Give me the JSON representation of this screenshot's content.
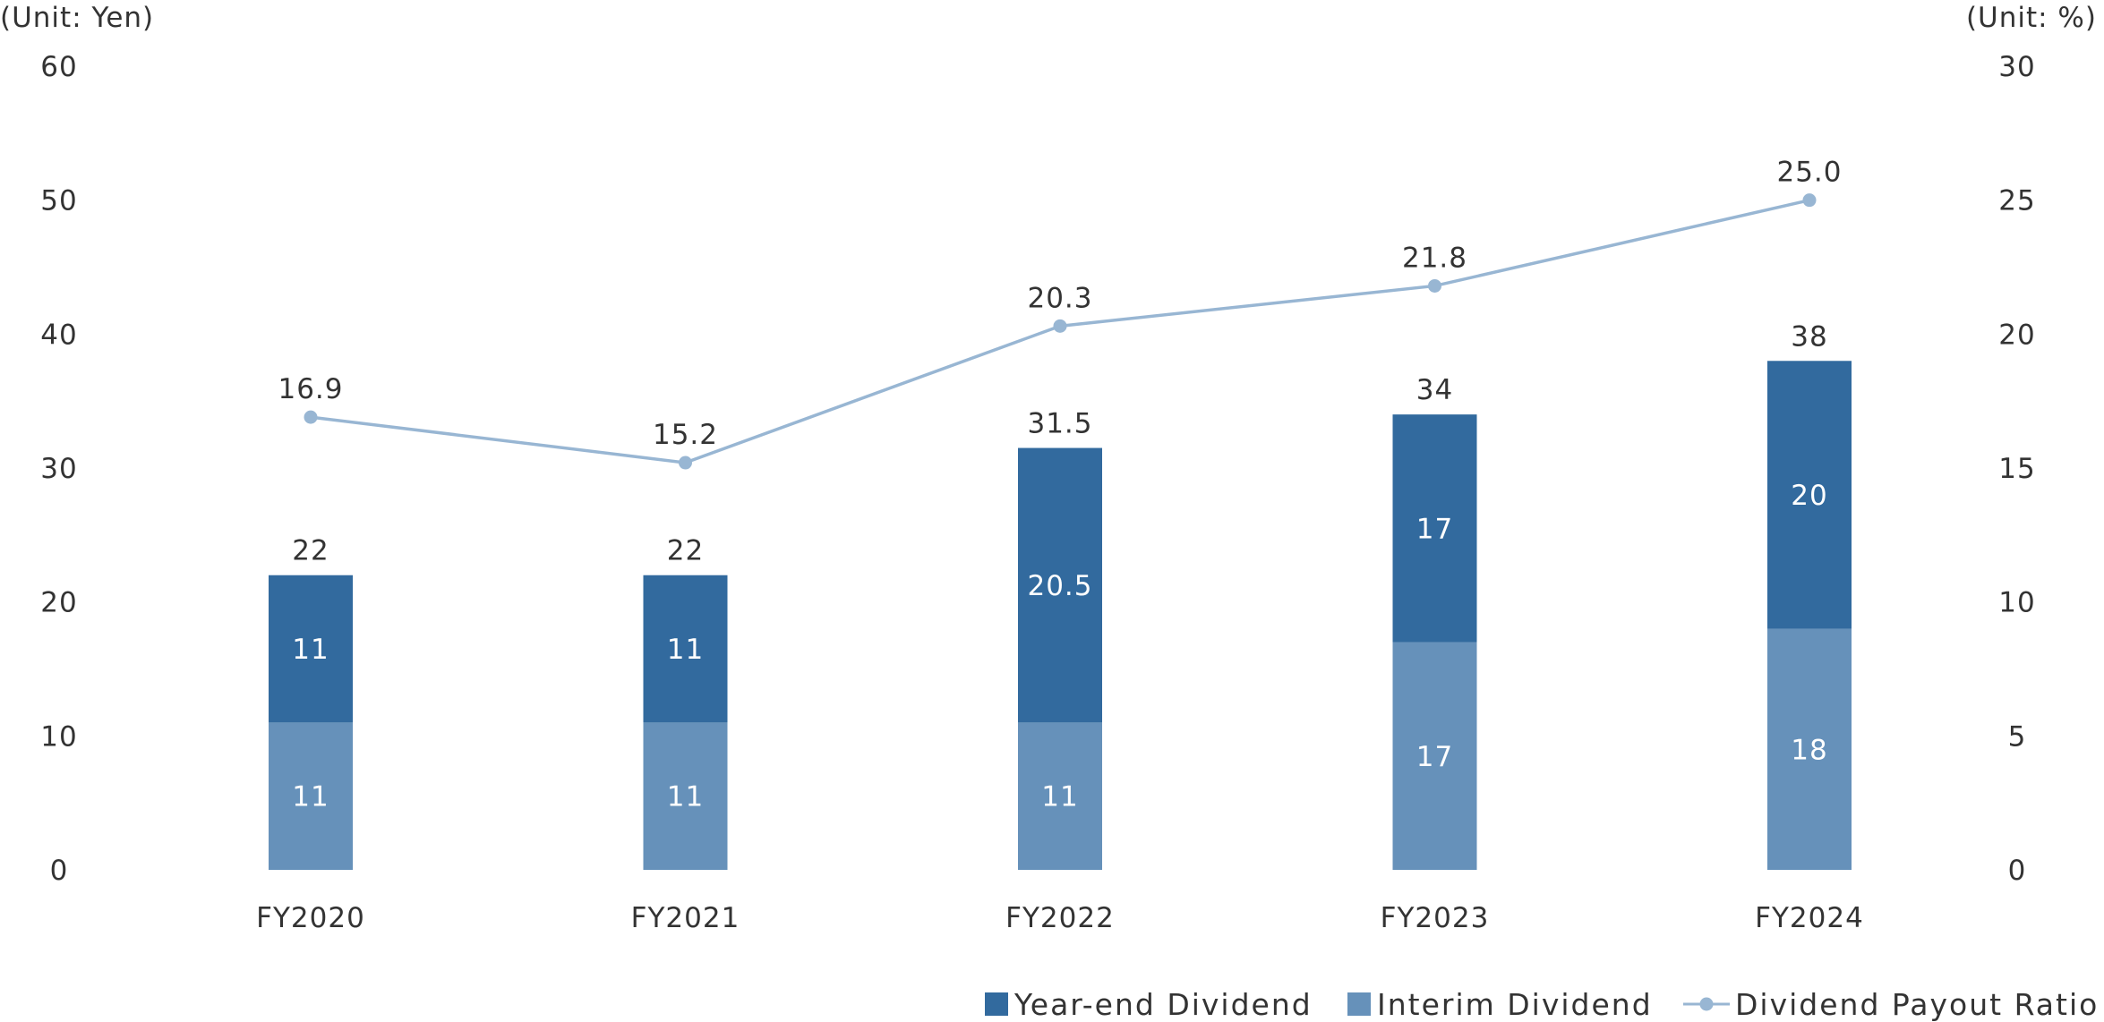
{
  "chart_data": {
    "type": "bar",
    "stacked": true,
    "categories": [
      "FY2020",
      "FY2021",
      "FY2022",
      "FY2023",
      "FY2024"
    ],
    "series": [
      {
        "name": "Interim Dividend",
        "kind": "bar",
        "axis": "left",
        "color": "#6691ba",
        "values": [
          11,
          11,
          11,
          17,
          18
        ],
        "labels": [
          "11",
          "11",
          "11",
          "17",
          "18"
        ]
      },
      {
        "name": "Year-end Dividend",
        "kind": "bar",
        "axis": "left",
        "color": "#326a9e",
        "values": [
          11,
          11,
          20.5,
          17,
          20
        ],
        "labels": [
          "11",
          "11",
          "20.5",
          "17",
          "20"
        ]
      },
      {
        "name": "Dividend Payout Ratio",
        "kind": "line",
        "axis": "right",
        "color": "#98b6d3",
        "values": [
          16.9,
          15.2,
          20.3,
          21.8,
          25.0
        ],
        "labels": [
          "16.9",
          "15.2",
          "20.3",
          "21.8",
          "25.0"
        ]
      }
    ],
    "totals": [
      22,
      22,
      31.5,
      34,
      38
    ],
    "total_labels": [
      "22",
      "22",
      "31.5",
      "34",
      "38"
    ],
    "left_axis": {
      "unit_label": "(Unit: Yen)",
      "min": 0,
      "max": 60,
      "ticks": [
        "0",
        "10",
        "20",
        "30",
        "40",
        "50",
        "60"
      ]
    },
    "right_axis": {
      "unit_label": "(Unit: %)",
      "min": 0,
      "max": 30,
      "ticks": [
        "0",
        "5",
        "10",
        "15",
        "20",
        "25",
        "30"
      ]
    },
    "legend": {
      "position": "bottom-right",
      "items": [
        {
          "label": "Year-end Dividend",
          "marker": "square",
          "color": "#326a9e"
        },
        {
          "label": "Interim Dividend",
          "marker": "square",
          "color": "#6691ba"
        },
        {
          "label": "Dividend Payout Ratio",
          "marker": "line-dot",
          "color": "#98b6d3"
        }
      ]
    },
    "grid": false
  }
}
